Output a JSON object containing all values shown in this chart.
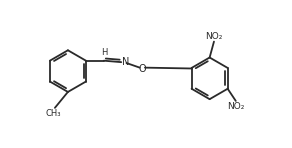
{
  "bg_color": "#ffffff",
  "line_color": "#2a2a2a",
  "line_width": 1.3,
  "figsize": [
    2.92,
    1.48
  ],
  "dpi": 100,
  "xlim": [
    0,
    10
  ],
  "ylim": [
    0,
    5
  ]
}
